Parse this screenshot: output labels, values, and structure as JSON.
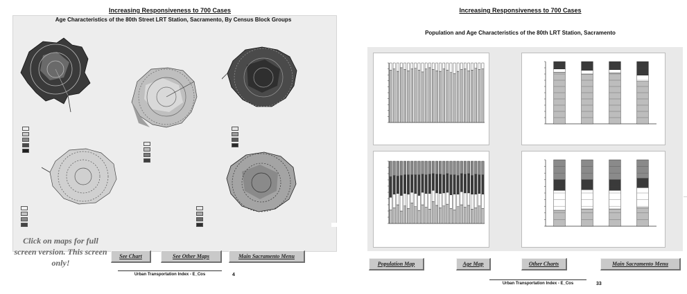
{
  "left": {
    "title": "Increasing Responsiveness to 700 Cases",
    "subtitle": "Age Characteristics of the 80th Street LRT Station, Sacramento, By Census Block Groups",
    "maps": [
      {
        "name": "map-top-left",
        "legend": {
          "title": "",
          "items": [
            "",
            "",
            "",
            "",
            ""
          ]
        }
      },
      {
        "name": "map-top-center",
        "legend": {
          "title": "",
          "items": [
            "",
            "",
            "",
            ""
          ]
        }
      },
      {
        "name": "map-top-right",
        "legend": {
          "title": "",
          "items": [
            "",
            "",
            "",
            ""
          ]
        }
      },
      {
        "name": "map-bottom-left",
        "legend": {
          "title": "",
          "items": [
            "",
            "",
            "",
            ""
          ]
        }
      },
      {
        "name": "map-bottom-right",
        "legend": {
          "title": "",
          "items": [
            "",
            "",
            "",
            ""
          ]
        }
      }
    ],
    "note": "Click on maps for full screen version. This screen only!",
    "credit": "",
    "buttons": {
      "see_chart": "See Chart",
      "see_other_maps": "See Other Maps",
      "main_menu": "Main Sacramento Menu"
    },
    "footer": "Urban Transportation Index - E_Cos",
    "page": "4",
    "colors": {
      "dark": "#2a2a2a",
      "mid_dark": "#5a5a5a",
      "mid": "#9a9a9a",
      "light": "#c9c9c9",
      "lightest": "#e6e6e6"
    }
  },
  "right": {
    "title": "Increasing Responsiveness to 700 Cases",
    "subtitle": "Population and Age Characteristics of the 80th LRT Station, Sacramento",
    "note": "",
    "charts": [
      {
        "title": "",
        "caption": ""
      },
      {
        "title": "",
        "caption": ""
      },
      {
        "title": "",
        "caption": ""
      },
      {
        "title": "",
        "caption": ""
      }
    ],
    "credit": "",
    "buttons": {
      "population_map": "Population Map",
      "age_map": "Age Map",
      "other_charts": "Other Charts",
      "main_menu": "Main Sacramento Menu"
    },
    "footer": "Urban Transportation Index - E_Cos",
    "page": "33"
  },
  "chart_data": [
    {
      "type": "bar",
      "stacked": true,
      "n_categories": 27,
      "series": [
        {
          "values": [
            0.88,
            0.9,
            0.86,
            0.92,
            0.89,
            0.87,
            0.9,
            0.91,
            0.88,
            0.85,
            0.9,
            0.92,
            0.89,
            0.87,
            0.86,
            0.9,
            0.88,
            0.84,
            0.82,
            0.86,
            0.89,
            0.9,
            0.87,
            0.88,
            0.91,
            0.89,
            0.9
          ]
        },
        {
          "values": [
            0.12,
            0.1,
            0.14,
            0.08,
            0.11,
            0.13,
            0.1,
            0.09,
            0.12,
            0.15,
            0.1,
            0.08,
            0.11,
            0.13,
            0.14,
            0.1,
            0.12,
            0.16,
            0.18,
            0.14,
            0.11,
            0.1,
            0.13,
            0.12,
            0.09,
            0.11,
            0.1
          ]
        }
      ],
      "ylim": [
        0,
        1
      ]
    },
    {
      "type": "bar",
      "stacked": true,
      "n_categories": 4,
      "series": [
        {
          "values": [
            0.83,
            0.8,
            0.82,
            0.68
          ]
        },
        {
          "values": [
            0.05,
            0.06,
            0.05,
            0.1
          ]
        },
        {
          "values": [
            0.12,
            0.14,
            0.13,
            0.22
          ]
        }
      ],
      "ylim": [
        0,
        1
      ]
    },
    {
      "type": "bar",
      "stacked": true,
      "n_categories": 27,
      "series": [
        {
          "values": [
            0.22,
            0.25,
            0.3,
            0.2,
            0.28,
            0.24,
            0.33,
            0.27,
            0.21,
            0.3,
            0.26,
            0.23,
            0.35,
            0.29,
            0.25,
            0.28,
            0.31,
            0.24,
            0.22,
            0.27,
            0.3,
            0.26,
            0.29,
            0.23,
            0.25,
            0.28,
            0.24
          ]
        },
        {
          "values": [
            0.2,
            0.22,
            0.18,
            0.25,
            0.2,
            0.23,
            0.17,
            0.21,
            0.24,
            0.2,
            0.22,
            0.25,
            0.18,
            0.2,
            0.23,
            0.21,
            0.19,
            0.22,
            0.25,
            0.2,
            0.21,
            0.23,
            0.2,
            0.24,
            0.22,
            0.2,
            0.23
          ]
        },
        {
          "values": [
            0.33,
            0.3,
            0.28,
            0.32,
            0.3,
            0.31,
            0.28,
            0.3,
            0.33,
            0.29,
            0.3,
            0.31,
            0.27,
            0.3,
            0.31,
            0.29,
            0.3,
            0.32,
            0.31,
            0.3,
            0.29,
            0.3,
            0.31,
            0.3,
            0.32,
            0.3,
            0.31
          ]
        },
        {
          "values": [
            0.25,
            0.23,
            0.24,
            0.23,
            0.22,
            0.22,
            0.22,
            0.22,
            0.22,
            0.21,
            0.22,
            0.21,
            0.2,
            0.21,
            0.21,
            0.22,
            0.2,
            0.22,
            0.22,
            0.23,
            0.2,
            0.21,
            0.2,
            0.23,
            0.21,
            0.22,
            0.22
          ]
        }
      ],
      "ylim": [
        0,
        1
      ]
    },
    {
      "type": "bar",
      "stacked": true,
      "n_categories": 4,
      "series": [
        {
          "values": [
            0.24,
            0.26,
            0.26,
            0.28
          ]
        },
        {
          "values": [
            0.3,
            0.29,
            0.28,
            0.3
          ]
        },
        {
          "values": [
            0.16,
            0.15,
            0.16,
            0.14
          ]
        },
        {
          "values": [
            0.3,
            0.3,
            0.3,
            0.28
          ]
        }
      ],
      "ylim": [
        0,
        1
      ]
    }
  ]
}
